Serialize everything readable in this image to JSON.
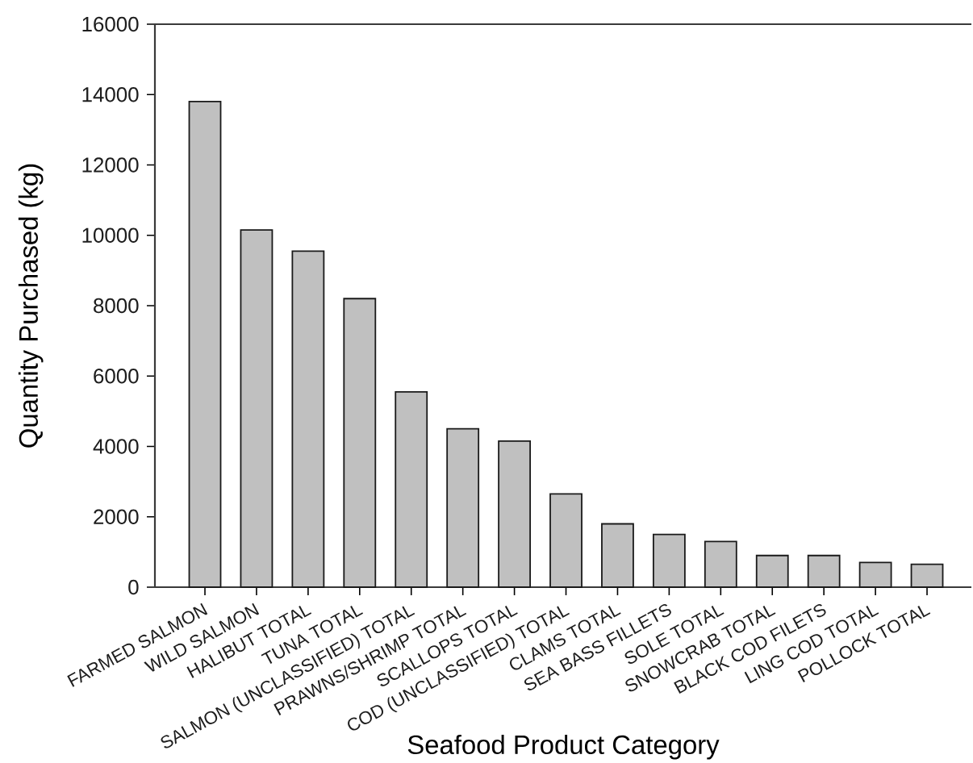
{
  "chart_data": {
    "type": "bar",
    "xlabel": "Seafood Product Category",
    "ylabel": "Quantity Purchased (kg)",
    "categories": [
      "FARMED SALMON",
      "WILD SALMON",
      "HALIBUT TOTAL",
      "TUNA TOTAL",
      "SALMON (UNCLASSIFIED) TOTAL",
      "PRAWNS/SHRIMP TOTAL",
      "SCALLOPS TOTAL",
      "COD (UNCLASSIFIED) TOTAL",
      "CLAMS TOTAL",
      "SEA BASS FILLETS",
      "SOLE TOTAL",
      "SNOWCRAB TOTAL",
      "BLACK COD FILETS",
      "LING COD TOTAL",
      "POLLOCK TOTAL"
    ],
    "values": [
      13800,
      10150,
      9550,
      8200,
      5550,
      4500,
      4150,
      2650,
      1800,
      1500,
      1300,
      900,
      900,
      700,
      650
    ],
    "color": "#c0c0c0",
    "ylim": [
      0,
      16000
    ],
    "yticks": [
      0,
      2000,
      4000,
      6000,
      8000,
      10000,
      12000,
      14000,
      16000
    ]
  }
}
